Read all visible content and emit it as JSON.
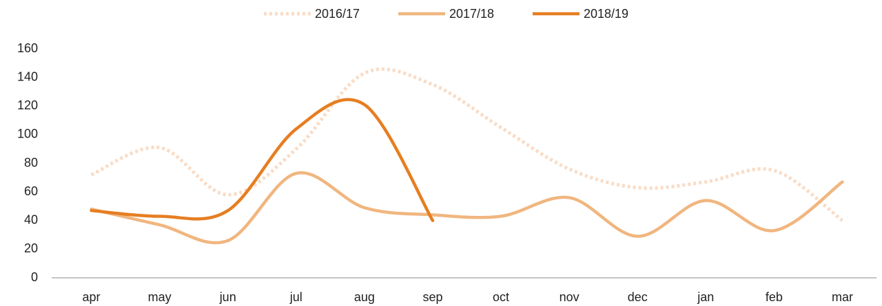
{
  "chart_data": {
    "type": "line",
    "smooth": true,
    "categories": [
      "apr",
      "may",
      "jun",
      "jul",
      "aug",
      "sep",
      "oct",
      "nov",
      "dec",
      "jan",
      "feb",
      "mar"
    ],
    "series": [
      {
        "name": "2016/17",
        "color": "#f9dcc6",
        "line_style": "dotted",
        "values": [
          72,
          91,
          58,
          90,
          143,
          135,
          105,
          76,
          63,
          67,
          75,
          40
        ]
      },
      {
        "name": "2017/18",
        "color": "#f0b67f",
        "line_style": "solid",
        "values": [
          48,
          37,
          26,
          73,
          49,
          44,
          43,
          56,
          29,
          54,
          33,
          67
        ]
      },
      {
        "name": "2018/19",
        "color": "#e67e22",
        "line_style": "solid",
        "values": [
          47,
          43,
          47,
          104,
          121,
          40,
          null,
          null,
          null,
          null,
          null,
          null
        ]
      }
    ],
    "ylim": [
      0,
      160
    ],
    "yticks": [
      0,
      20,
      40,
      60,
      80,
      100,
      120,
      140,
      160
    ],
    "grid": false,
    "legend": "top"
  }
}
